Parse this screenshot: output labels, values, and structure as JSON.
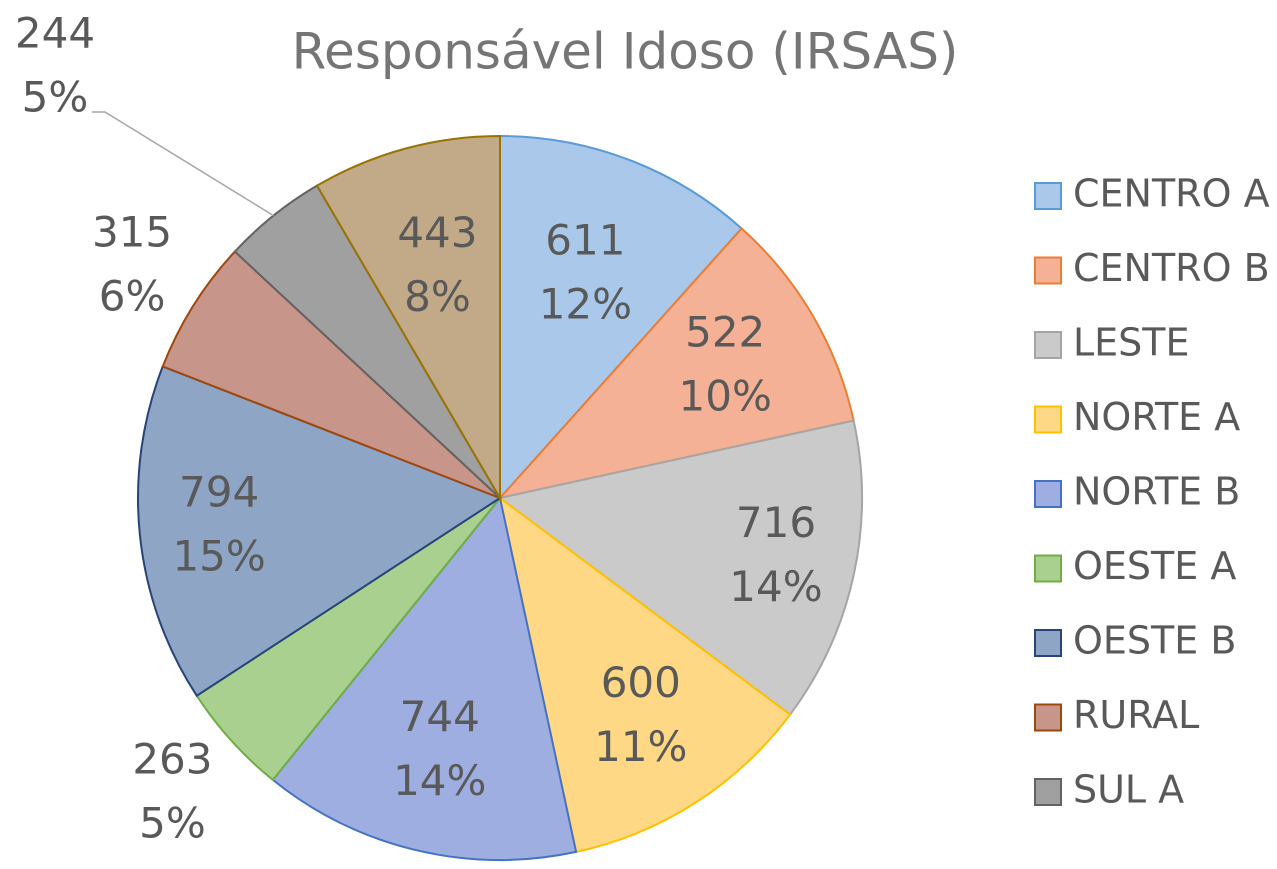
{
  "chart_data": {
    "type": "pie",
    "title": "Responsável Idoso (IRSAS)",
    "categories": [
      "CENTRO A",
      "CENTRO B",
      "LESTE",
      "NORTE A",
      "NORTE B",
      "OESTE A",
      "OESTE B",
      "RURAL",
      "SUL A",
      null
    ],
    "values": [
      611,
      522,
      716,
      600,
      744,
      263,
      794,
      315,
      244,
      443
    ],
    "percent_labels": [
      "12%",
      "10%",
      "14%",
      "11%",
      "14%",
      "5%",
      "15%",
      "6%",
      "5%",
      "8%"
    ],
    "colors": [
      "#a9c8ea",
      "#f5b196",
      "#cacaca",
      "#ffd886",
      "#9eaee0",
      "#a9d08e",
      "#8ea5c5",
      "#c8958b",
      "#a0a0a0",
      "#c2aa88"
    ],
    "edge_colors": [
      "#5b9bd5",
      "#ed7d31",
      "#a5a5a5",
      "#ffc000",
      "#4472c4",
      "#70ad47",
      "#264478",
      "#9e480e",
      "#636363",
      "#997300"
    ],
    "legend": "right"
  }
}
